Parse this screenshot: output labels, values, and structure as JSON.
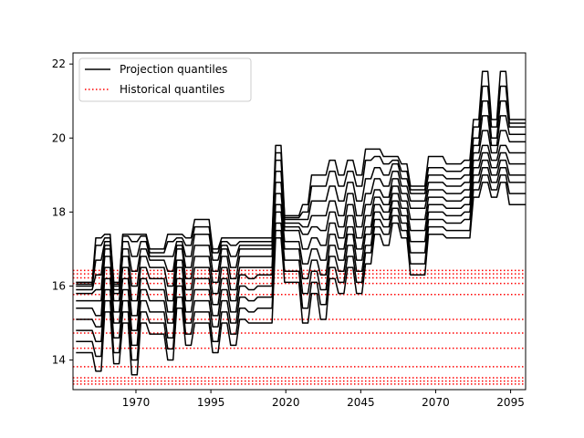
{
  "chart_data": {
    "type": "line",
    "title": "",
    "xlabel": "",
    "ylabel": "",
    "xlim": [
      1949,
      2100
    ],
    "ylim": [
      13.2,
      22.3
    ],
    "xticks": [
      1970,
      1995,
      2020,
      2045,
      2070,
      2095
    ],
    "yticks": [
      14,
      16,
      18,
      20,
      22
    ],
    "grid": false,
    "legend": {
      "placement": "top-left",
      "entries": [
        {
          "label": "Projection quantiles",
          "style": "solid",
          "color": "#000000"
        },
        {
          "label": "Historical quantiles",
          "style": "dotted",
          "color": "#ff0000"
        }
      ]
    },
    "historical_quantiles": [
      13.35,
      13.43,
      13.52,
      13.82,
      14.32,
      14.73,
      15.1,
      15.77,
      16.07,
      16.22,
      16.33,
      16.42
    ],
    "projection_step_years": 3,
    "projection_x": [
      1950,
      1953,
      1956,
      1959,
      1962,
      1965,
      1968,
      1971,
      1974,
      1977,
      1980,
      1983,
      1986,
      1989,
      1992,
      1995,
      1998,
      2001,
      2004,
      2007,
      2010,
      2013,
      2016,
      2019,
      2022,
      2025,
      2028,
      2031,
      2034,
      2037,
      2040,
      2043,
      2046,
      2049,
      2052,
      2055,
      2058,
      2061,
      2064,
      2067,
      2070,
      2073,
      2076,
      2079,
      2082,
      2085,
      2088,
      2091,
      2094,
      2097,
      2100
    ],
    "series": [
      {
        "quantile": "min",
        "values": [
          14.2,
          14.2,
          13.7,
          15.3,
          13.9,
          15.0,
          13.6,
          15.0,
          14.7,
          14.7,
          14.0,
          15.4,
          14.4,
          15.0,
          15.0,
          14.2,
          15.0,
          14.4,
          15.1,
          15.0,
          15.0,
          15.0,
          17.3,
          16.1,
          16.1,
          15.0,
          15.8,
          15.1,
          16.2,
          15.8,
          16.5,
          15.8,
          16.6,
          17.4,
          17.1,
          17.7,
          17.3,
          16.3,
          16.3,
          17.4,
          17.4,
          17.3,
          17.3,
          17.3,
          18.4,
          18.8,
          18.4,
          18.8,
          18.2,
          18.2,
          18.2
        ]
      },
      {
        "quantile": "q10",
        "values": [
          14.5,
          14.5,
          14.1,
          15.6,
          14.2,
          15.3,
          14.0,
          15.3,
          15.0,
          15.0,
          14.3,
          15.7,
          14.7,
          15.3,
          15.3,
          14.5,
          15.3,
          14.7,
          15.4,
          15.3,
          15.4,
          15.4,
          17.5,
          16.4,
          16.4,
          15.4,
          16.1,
          15.5,
          16.5,
          16.1,
          16.8,
          16.1,
          16.9,
          17.6,
          17.4,
          17.9,
          17.5,
          16.6,
          16.6,
          17.6,
          17.6,
          17.5,
          17.5,
          17.5,
          18.6,
          19.0,
          18.6,
          19.0,
          18.5,
          18.5,
          18.5
        ]
      },
      {
        "quantile": "q20",
        "values": [
          14.8,
          14.8,
          14.5,
          15.9,
          14.6,
          15.6,
          14.4,
          15.6,
          15.3,
          15.3,
          14.6,
          16.0,
          15.0,
          15.6,
          15.6,
          14.9,
          15.6,
          15.0,
          15.7,
          15.6,
          15.7,
          15.7,
          17.7,
          16.7,
          16.7,
          15.8,
          16.4,
          15.9,
          16.8,
          16.4,
          17.1,
          16.4,
          17.1,
          17.8,
          17.6,
          18.1,
          17.7,
          16.9,
          16.9,
          17.8,
          17.8,
          17.7,
          17.7,
          17.8,
          18.8,
          19.2,
          18.8,
          19.2,
          18.8,
          18.8,
          18.8
        ]
      },
      {
        "quantile": "q30",
        "values": [
          15.1,
          15.1,
          14.9,
          16.2,
          15.0,
          15.9,
          14.8,
          15.9,
          15.6,
          15.6,
          15.0,
          16.2,
          15.3,
          15.9,
          15.9,
          15.2,
          15.9,
          15.3,
          16.0,
          15.9,
          16.0,
          16.0,
          18.0,
          17.0,
          17.0,
          16.2,
          16.7,
          16.3,
          17.1,
          16.7,
          17.4,
          16.7,
          17.4,
          18.0,
          17.8,
          18.3,
          17.9,
          17.2,
          17.2,
          18.0,
          18.0,
          17.9,
          17.9,
          18.0,
          19.0,
          19.4,
          19.0,
          19.4,
          19.0,
          19.0,
          19.0
        ]
      },
      {
        "quantile": "q40",
        "values": [
          15.4,
          15.4,
          15.2,
          16.5,
          15.3,
          16.2,
          15.2,
          16.2,
          15.9,
          15.9,
          15.3,
          16.5,
          15.6,
          16.2,
          16.2,
          15.5,
          16.2,
          15.6,
          16.3,
          16.2,
          16.3,
          16.3,
          18.2,
          17.2,
          17.2,
          16.6,
          17.0,
          16.7,
          17.4,
          17.0,
          17.6,
          17.0,
          17.6,
          18.2,
          18.0,
          18.5,
          18.1,
          17.5,
          17.5,
          18.2,
          18.2,
          18.1,
          18.1,
          18.2,
          19.2,
          19.6,
          19.2,
          19.6,
          19.3,
          19.3,
          19.3
        ]
      },
      {
        "quantile": "q50",
        "values": [
          15.6,
          15.6,
          15.6,
          16.8,
          15.6,
          16.5,
          15.6,
          16.5,
          16.2,
          16.2,
          15.6,
          16.7,
          15.9,
          16.5,
          16.5,
          15.8,
          16.5,
          15.9,
          16.5,
          16.5,
          16.5,
          16.5,
          18.5,
          17.5,
          17.5,
          17.0,
          17.3,
          17.1,
          17.7,
          17.3,
          17.9,
          17.3,
          17.9,
          18.4,
          18.2,
          18.7,
          18.3,
          17.8,
          17.8,
          18.4,
          18.4,
          18.3,
          18.3,
          18.4,
          19.4,
          19.8,
          19.4,
          19.8,
          19.6,
          19.6,
          19.6
        ]
      },
      {
        "quantile": "q60",
        "values": [
          15.8,
          15.8,
          15.9,
          17.0,
          15.8,
          16.8,
          16.0,
          16.8,
          16.5,
          16.5,
          16.0,
          17.0,
          16.2,
          16.8,
          16.8,
          16.1,
          16.8,
          16.2,
          16.8,
          16.8,
          16.8,
          16.8,
          18.8,
          17.6,
          17.6,
          17.4,
          17.6,
          17.5,
          18.0,
          17.6,
          18.2,
          17.6,
          18.2,
          18.6,
          18.4,
          18.9,
          18.5,
          18.1,
          18.1,
          18.6,
          18.6,
          18.5,
          18.5,
          18.6,
          19.6,
          20.2,
          19.6,
          20.2,
          19.9,
          19.9,
          19.9
        ]
      },
      {
        "quantile": "q70",
        "values": [
          15.9,
          15.9,
          16.3,
          17.1,
          15.9,
          17.0,
          16.4,
          17.0,
          16.7,
          16.7,
          16.4,
          17.1,
          16.5,
          17.1,
          17.1,
          16.4,
          17.0,
          16.5,
          17.0,
          17.0,
          17.0,
          17.0,
          19.1,
          17.7,
          17.7,
          17.6,
          17.9,
          17.9,
          18.3,
          17.9,
          18.5,
          17.9,
          18.5,
          18.9,
          18.7,
          19.1,
          18.7,
          18.3,
          18.3,
          18.8,
          18.8,
          18.7,
          18.7,
          18.8,
          19.8,
          20.6,
          19.8,
          20.6,
          20.1,
          20.1,
          20.1
        ]
      },
      {
        "quantile": "q80",
        "values": [
          16.0,
          16.0,
          16.7,
          17.2,
          16.0,
          17.2,
          16.8,
          17.2,
          16.8,
          16.8,
          16.8,
          17.2,
          16.8,
          17.4,
          17.4,
          16.7,
          17.1,
          16.8,
          17.1,
          17.1,
          17.1,
          17.1,
          19.4,
          17.8,
          17.8,
          17.8,
          18.3,
          18.3,
          18.7,
          18.3,
          18.8,
          18.3,
          18.9,
          19.2,
          19.0,
          19.3,
          18.9,
          18.5,
          18.5,
          19.0,
          19.0,
          18.9,
          18.9,
          19.0,
          20.0,
          21.0,
          20.0,
          21.0,
          20.3,
          20.3,
          20.3
        ]
      },
      {
        "quantile": "q90",
        "values": [
          16.05,
          16.05,
          17.1,
          17.3,
          16.05,
          17.35,
          17.2,
          17.35,
          16.9,
          16.9,
          17.2,
          17.3,
          17.1,
          17.6,
          17.6,
          16.9,
          17.2,
          17.1,
          17.2,
          17.2,
          17.2,
          17.2,
          19.6,
          17.85,
          17.85,
          18.0,
          18.7,
          18.7,
          19.1,
          18.7,
          19.1,
          18.7,
          19.4,
          19.5,
          19.3,
          19.4,
          19.1,
          18.6,
          18.6,
          19.2,
          19.2,
          19.1,
          19.1,
          19.2,
          20.3,
          21.4,
          20.3,
          21.4,
          20.4,
          20.4,
          20.4
        ]
      },
      {
        "quantile": "max",
        "values": [
          16.1,
          16.1,
          17.3,
          17.4,
          16.1,
          17.4,
          17.4,
          17.4,
          17.0,
          17.0,
          17.4,
          17.4,
          17.3,
          17.8,
          17.8,
          17.0,
          17.3,
          17.3,
          17.3,
          17.3,
          17.3,
          17.3,
          19.8,
          17.9,
          17.9,
          18.2,
          19.0,
          19.0,
          19.4,
          19.0,
          19.4,
          19.0,
          19.7,
          19.7,
          19.5,
          19.5,
          19.3,
          18.7,
          18.7,
          19.5,
          19.5,
          19.3,
          19.3,
          19.4,
          20.5,
          21.8,
          20.5,
          21.8,
          20.5,
          20.5,
          20.5
        ]
      }
    ]
  }
}
